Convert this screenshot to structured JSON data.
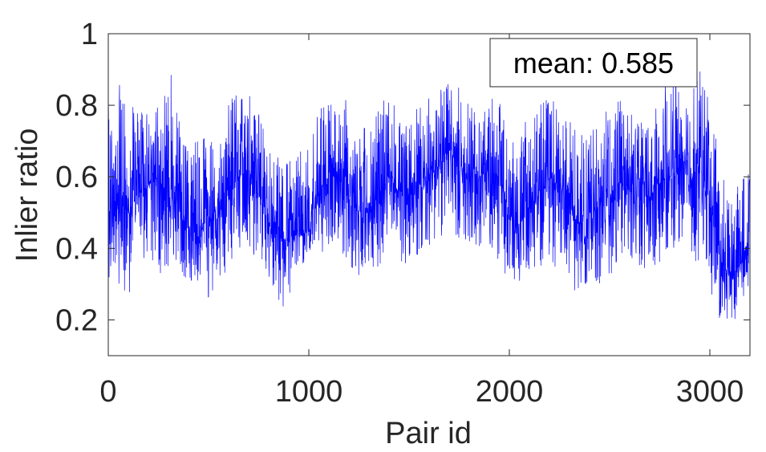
{
  "chart_data": {
    "type": "line",
    "xlabel": "Pair id",
    "ylabel": "Inlier ratio",
    "xlim": [
      0,
      3200
    ],
    "ylim": [
      0.1,
      1.0
    ],
    "xticks": [
      0,
      1000,
      2000,
      3000
    ],
    "xtick_labels": [
      "0",
      "1000",
      "2000",
      "3000"
    ],
    "yticks": [
      0.2,
      0.4,
      0.6,
      0.8,
      1.0
    ],
    "ytick_labels": [
      "0.2",
      "0.4",
      "0.6",
      "0.8",
      "1"
    ],
    "grid": false,
    "legend_placement": "top-right",
    "annotation": "mean: 0.585",
    "series": [
      {
        "color": "#0000ff",
        "x": [
          0,
          50,
          100,
          150,
          200,
          250,
          300,
          350,
          400,
          450,
          500,
          550,
          600,
          650,
          700,
          750,
          800,
          850,
          900,
          950,
          1000,
          1050,
          1100,
          1150,
          1200,
          1250,
          1300,
          1350,
          1400,
          1450,
          1500,
          1550,
          1600,
          1650,
          1700,
          1750,
          1800,
          1850,
          1900,
          1950,
          2000,
          2050,
          2100,
          2150,
          2200,
          2250,
          2300,
          2350,
          2400,
          2450,
          2500,
          2550,
          2600,
          2650,
          2700,
          2750,
          2800,
          2850,
          2900,
          2950,
          3000,
          3050,
          3100,
          3150,
          3200
        ],
        "values": [
          0.5,
          0.52,
          0.5,
          0.55,
          0.58,
          0.6,
          0.56,
          0.5,
          0.46,
          0.45,
          0.47,
          0.5,
          0.55,
          0.6,
          0.62,
          0.55,
          0.47,
          0.43,
          0.42,
          0.43,
          0.46,
          0.55,
          0.6,
          0.62,
          0.58,
          0.5,
          0.5,
          0.55,
          0.6,
          0.56,
          0.55,
          0.58,
          0.62,
          0.63,
          0.68,
          0.63,
          0.62,
          0.6,
          0.62,
          0.6,
          0.5,
          0.46,
          0.52,
          0.55,
          0.6,
          0.57,
          0.52,
          0.46,
          0.5,
          0.52,
          0.55,
          0.58,
          0.56,
          0.54,
          0.55,
          0.58,
          0.6,
          0.62,
          0.6,
          0.62,
          0.55,
          0.36,
          0.33,
          0.35,
          0.44
        ],
        "min": [
          0.32,
          0.3,
          0.26,
          0.36,
          0.38,
          0.33,
          0.32,
          0.3,
          0.3,
          0.3,
          0.26,
          0.3,
          0.35,
          0.38,
          0.4,
          0.36,
          0.3,
          0.22,
          0.25,
          0.33,
          0.34,
          0.38,
          0.4,
          0.4,
          0.36,
          0.3,
          0.33,
          0.35,
          0.4,
          0.36,
          0.34,
          0.38,
          0.4,
          0.42,
          0.45,
          0.42,
          0.4,
          0.38,
          0.4,
          0.32,
          0.3,
          0.3,
          0.32,
          0.33,
          0.36,
          0.34,
          0.3,
          0.26,
          0.32,
          0.3,
          0.32,
          0.36,
          0.34,
          0.34,
          0.33,
          0.36,
          0.38,
          0.4,
          0.36,
          0.36,
          0.28,
          0.2,
          0.2,
          0.2,
          0.3
        ],
        "max": [
          0.8,
          0.88,
          0.82,
          0.78,
          0.8,
          0.8,
          0.95,
          0.8,
          0.7,
          0.7,
          0.72,
          0.72,
          0.8,
          0.86,
          0.84,
          0.78,
          0.7,
          0.7,
          0.65,
          0.7,
          0.72,
          0.8,
          0.8,
          0.82,
          0.84,
          0.75,
          0.74,
          0.8,
          0.85,
          0.78,
          0.76,
          0.8,
          0.82,
          0.85,
          0.87,
          0.85,
          0.82,
          0.8,
          0.82,
          0.82,
          0.74,
          0.72,
          0.78,
          0.8,
          0.84,
          0.8,
          0.76,
          0.72,
          0.74,
          0.76,
          0.8,
          0.82,
          0.8,
          0.78,
          0.78,
          0.86,
          0.86,
          0.88,
          0.84,
          0.9,
          0.84,
          0.62,
          0.56,
          0.58,
          0.66
        ]
      }
    ]
  }
}
